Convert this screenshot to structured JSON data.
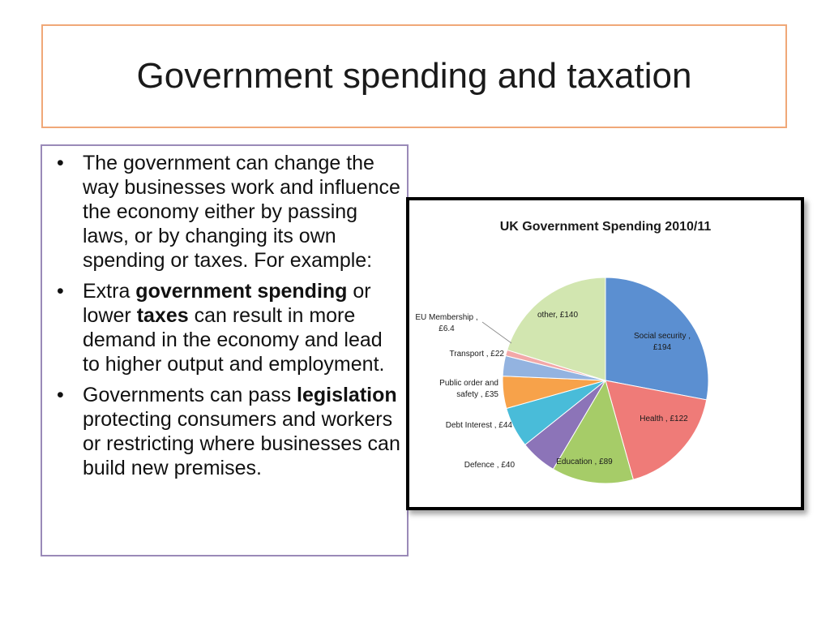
{
  "slide": {
    "title": "Government spending and taxation",
    "bullets": [
      {
        "parts": [
          {
            "text": "The government can change the way businesses work and influence the economy either by passing laws, or by changing its own spending or taxes. For example:"
          }
        ]
      },
      {
        "parts": [
          {
            "text": "Extra "
          },
          {
            "text": "government spending",
            "bold": true
          },
          {
            "text": " or lower "
          },
          {
            "text": "taxes",
            "bold": true
          },
          {
            "text": " can result in more demand in the economy and lead to higher output and employment."
          }
        ]
      },
      {
        "parts": [
          {
            "text": "Governments can pass "
          },
          {
            "text": "legislation",
            "bold": true
          },
          {
            "text": " protecting consumers and workers or restricting where businesses can build new premises."
          }
        ]
      }
    ],
    "bullet_char": "•"
  },
  "chart_data": {
    "type": "pie",
    "title": "UK Government Spending 2010/11",
    "slices": [
      {
        "label": "Social security , £194",
        "value": 194,
        "color": "#5b8fd1"
      },
      {
        "label": "Health , £122",
        "value": 122,
        "color": "#ef7b78"
      },
      {
        "label": "Education , £89",
        "value": 89,
        "color": "#a6cc68"
      },
      {
        "label": "Defence , £40",
        "value": 40,
        "color": "#8c74b8"
      },
      {
        "label": "Debt Interest , £44",
        "value": 44,
        "color": "#49bcd9"
      },
      {
        "label": "Public order and safety , £35",
        "value": 35,
        "color": "#f7a24a"
      },
      {
        "label": "Transport , £22",
        "value": 22,
        "color": "#93b3e0"
      },
      {
        "label": "EU Membership , £6.4",
        "value": 6.4,
        "color": "#f2a8a8"
      },
      {
        "label": "other, £140",
        "value": 140,
        "color": "#d2e6b0"
      }
    ],
    "legend": "none",
    "data_labels": "outside/inside slices"
  }
}
